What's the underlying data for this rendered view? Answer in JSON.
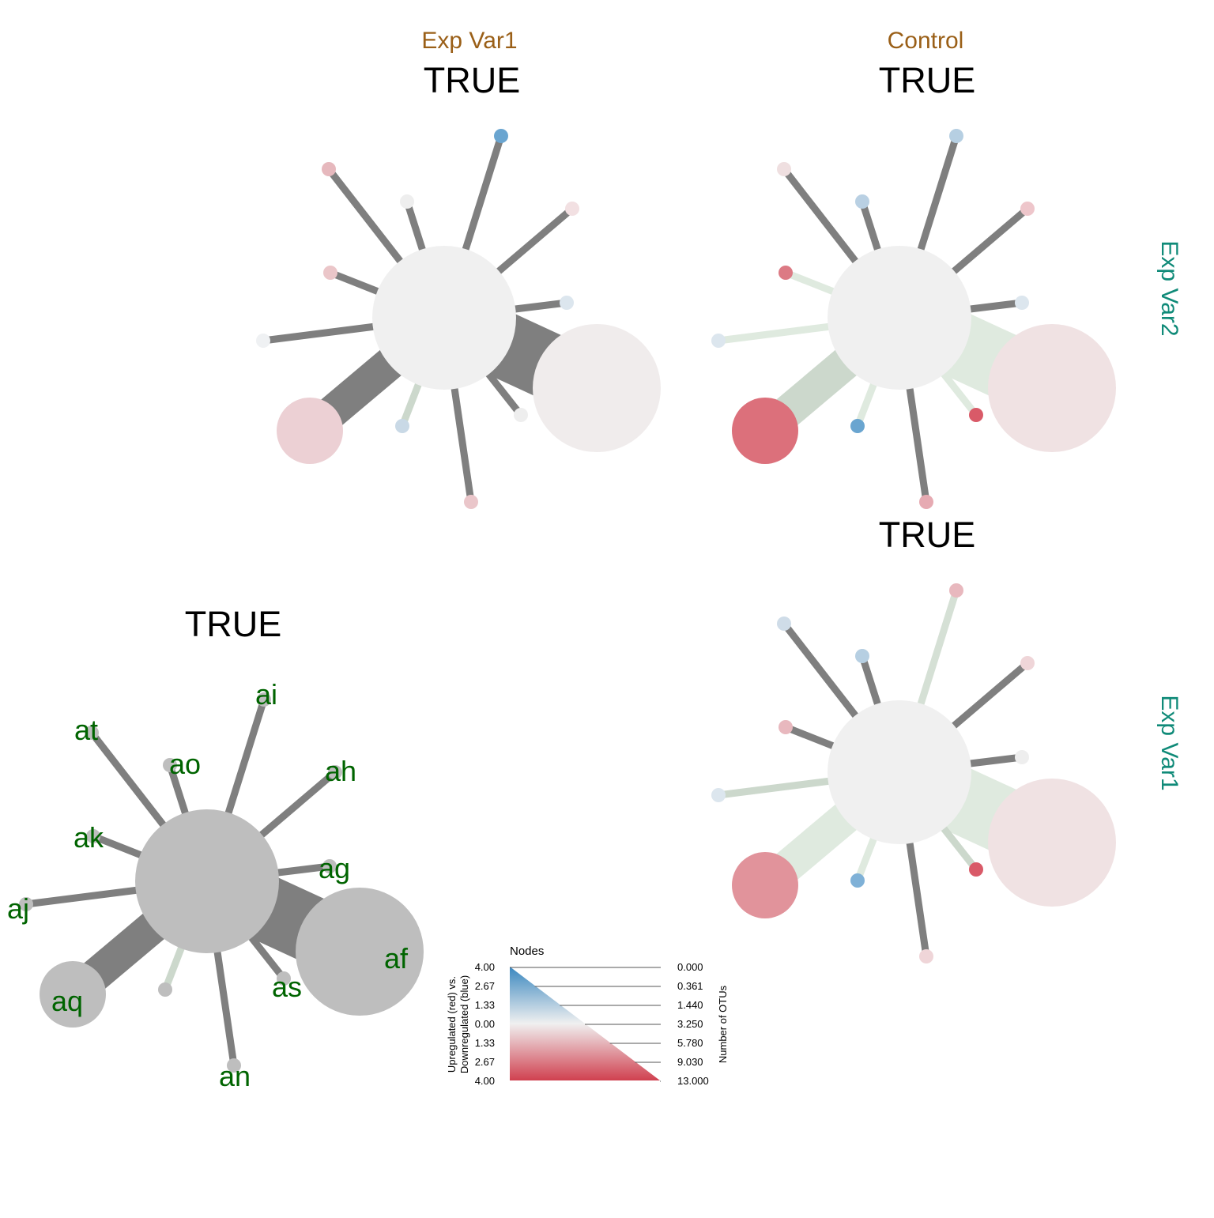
{
  "header": {
    "col_labels": [
      "Exp Var1",
      "Control"
    ],
    "row_labels": [
      "Exp Var2",
      "Exp Var1"
    ]
  },
  "panels": [
    {
      "id": "ev1-ev2",
      "title": "TRUE",
      "node_colors": {
        "center": "#f0f0f0",
        "af": "#f0ecec",
        "aq": "#ecd0d4",
        "aj": "#eff1f3",
        "at": "#e6b8bd",
        "ao": "#eeeeee",
        "ai": "#6aa5d0",
        "ah": "#f2e0e2",
        "ak": "#ebc6c9",
        "ag": "#dce6ee",
        "as": "#eeeeee",
        "an": "#eac6ca",
        "ar": "#c9d9e6"
      },
      "edge_colors": {
        "ar": "#ccd8cc"
      }
    },
    {
      "id": "control-ev2",
      "title": "TRUE",
      "node_colors": {
        "center": "#f0f0f0",
        "af": "#f0e2e3",
        "aq": "#dc707b",
        "aj": "#dce6ee",
        "at": "#efdfe0",
        "ao": "#b9d0e3",
        "ai": "#b6cfe2",
        "ah": "#eec6cb",
        "ak": "#dc7a84",
        "ag": "#dce6ee",
        "as": "#d95a68",
        "an": "#e6aab2",
        "ar": "#6aa5d0"
      },
      "edge_colors": {
        "ak": "#dfeadf",
        "aj": "#dfeadf",
        "af": "#dfeadf",
        "aq": "#ccd8cc",
        "ar": "#dfeadf",
        "as": "#dfeadf"
      }
    },
    {
      "id": "control-ev1",
      "title": "TRUE",
      "node_colors": {
        "center": "#f0f0f0",
        "af": "#f0e2e3",
        "aq": "#e1939b",
        "aj": "#dce6ee",
        "at": "#cfdce8",
        "ao": "#b6cfe2",
        "ai": "#e8b8be",
        "ah": "#efd5d8",
        "ak": "#e8b8be",
        "ag": "#eeeeee",
        "as": "#d95a68",
        "an": "#efd5d8",
        "ar": "#7fb1d7"
      },
      "edge_colors": {
        "ai": "#d5e0d5",
        "aj": "#ccd8cc",
        "af": "#dfeadf",
        "aq": "#dfeadf",
        "ar": "#dfeadf",
        "as": "#ccd8cc"
      }
    },
    {
      "id": "key",
      "title": "TRUE",
      "node_color": "#bebebe",
      "edge_colors": {
        "ar": "#ccd8cc"
      },
      "node_labels": [
        "af",
        "ag",
        "ah",
        "ai",
        "aj",
        "ak",
        "an",
        "ao",
        "aq",
        "as",
        "at"
      ]
    }
  ],
  "legend": {
    "title": "Nodes",
    "color_axis_title_line1": "Upregulated (red) vs.",
    "color_axis_title_line2": "Downregulated (blue)",
    "color_ticks": [
      "4.00",
      "2.67",
      "1.33",
      "0.00",
      "1.33",
      "2.67",
      "4.00"
    ],
    "size_axis_title": "Number of OTUs",
    "size_ticks": [
      "0.000",
      "0.361",
      "1.440",
      "3.250",
      "5.780",
      "9.030",
      "13.000"
    ],
    "colors": {
      "blue": "#3a87bf",
      "mid": "#f0f0f0",
      "red": "#d0404f"
    }
  }
}
